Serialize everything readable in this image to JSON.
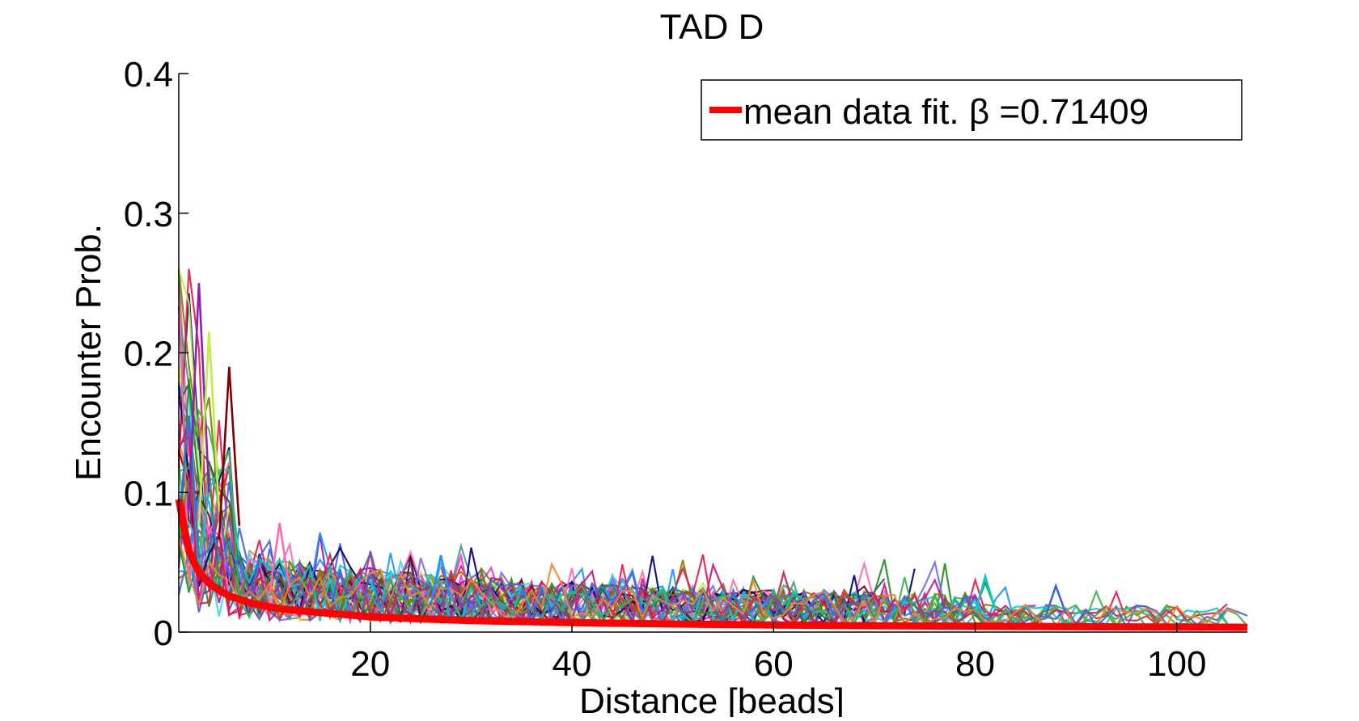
{
  "chart_data": {
    "type": "line",
    "title": "TAD D",
    "xlabel": "Distance [beads]",
    "ylabel": "Encounter Prob.",
    "xlim": [
      1,
      107
    ],
    "ylim": [
      0,
      0.4
    ],
    "x_ticks": [
      20,
      40,
      60,
      80,
      100
    ],
    "x_tick_labels": [
      "20",
      "40",
      "60",
      "80",
      "100"
    ],
    "y_ticks": [
      0,
      0.1,
      0.2,
      0.3,
      0.4
    ],
    "y_tick_labels": [
      "0",
      "0.1",
      "0.2",
      "0.3",
      "0.4"
    ],
    "grid": false,
    "legend": {
      "position": "top-right",
      "entries": [
        {
          "label": "mean data fit. β =0.71409",
          "color": "#ff0000"
        }
      ]
    },
    "fit_series": {
      "name": "mean data fit. β =0.71409",
      "color": "#ff0000",
      "beta": 0.71409,
      "x": [
        1,
        2,
        3,
        4,
        5,
        6,
        8,
        10,
        12,
        15,
        20,
        25,
        30,
        40,
        50,
        60,
        70,
        80,
        90,
        100,
        107
      ],
      "y": [
        0.095,
        0.058,
        0.043,
        0.035,
        0.03,
        0.026,
        0.021,
        0.018,
        0.016,
        0.014,
        0.011,
        0.0095,
        0.0083,
        0.0068,
        0.0058,
        0.0051,
        0.0046,
        0.0042,
        0.0038,
        0.0036,
        0.0034
      ]
    },
    "data_series_colors": [
      "#e6194b",
      "#3cb44b",
      "#4363d8",
      "#f58231",
      "#911eb4",
      "#42d4f4",
      "#f032e6",
      "#bfef45",
      "#469990",
      "#9a6324",
      "#800000",
      "#000075",
      "#2f4f4f",
      "#ff69b4",
      "#7b68ee",
      "#228b22",
      "#1e90ff",
      "#c71585",
      "#808000",
      "#00ced1"
    ],
    "data_series_x_max": [
      30,
      35,
      40,
      45,
      50,
      55,
      60,
      62,
      65,
      70,
      72,
      75,
      80,
      82,
      84,
      87,
      88,
      92,
      100,
      104,
      106,
      107
    ],
    "data_series_count": 44,
    "peak_annotations": [
      {
        "x": 3,
        "y": 0.25
      },
      {
        "x": 4,
        "y": 0.215
      },
      {
        "x": 6,
        "y": 0.19
      },
      {
        "x": 11,
        "y": 0.078
      },
      {
        "x": 27,
        "y": 0.055
      },
      {
        "x": 81,
        "y": 0.04
      },
      {
        "x": 88,
        "y": 0.033
      }
    ]
  }
}
